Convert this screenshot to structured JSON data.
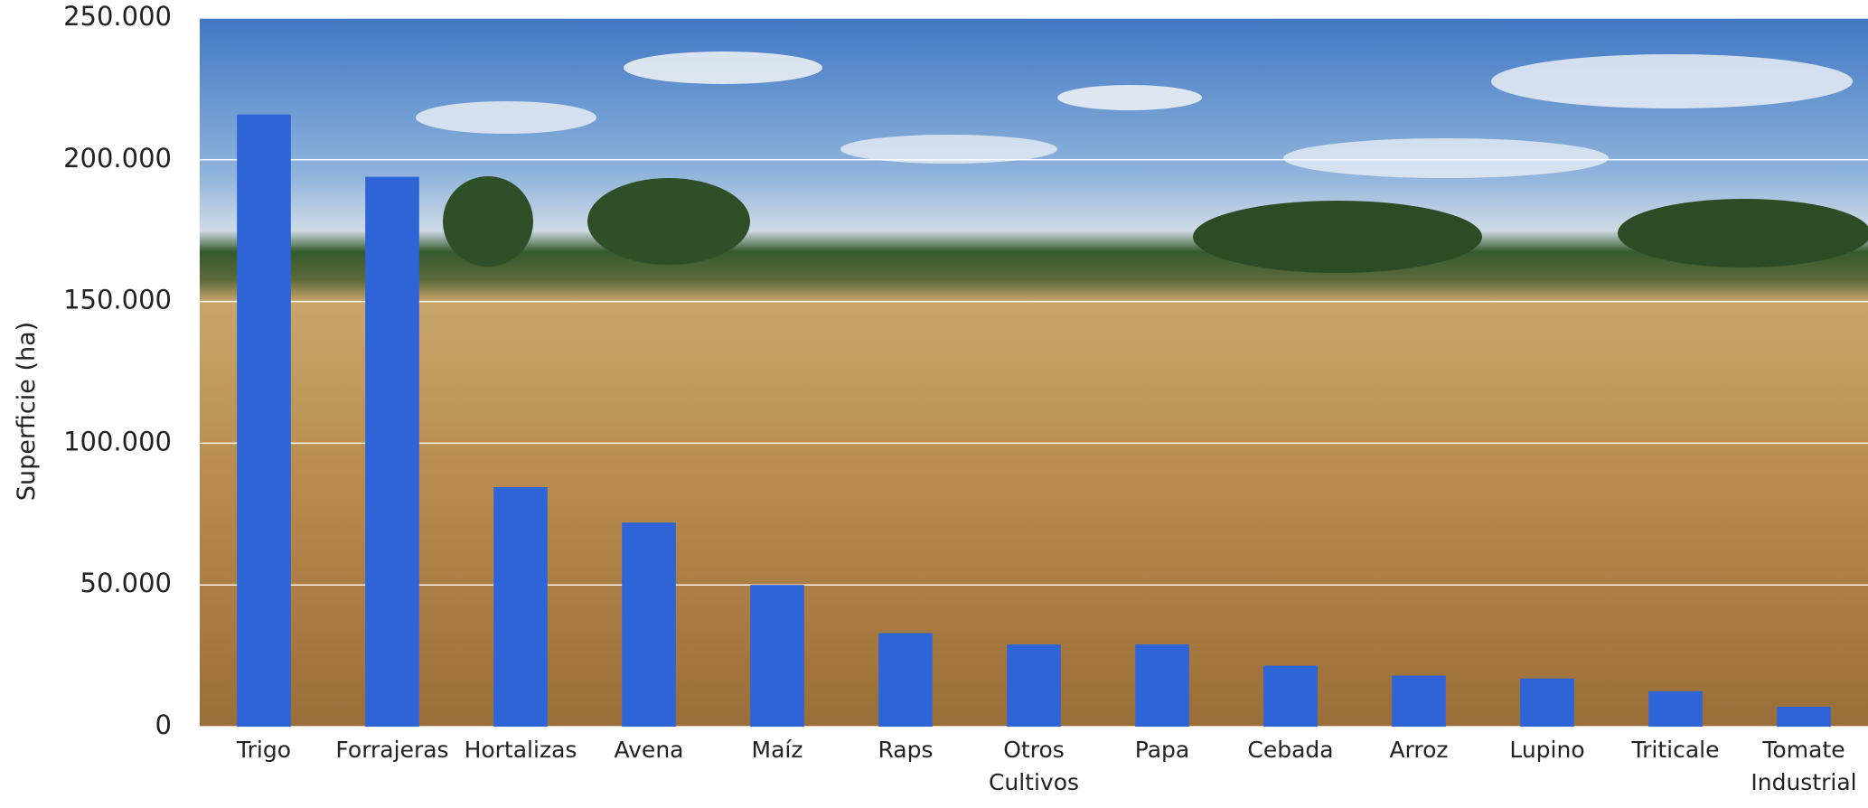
{
  "chart_data": {
    "type": "bar",
    "y_label": "Superficie (ha)",
    "categories": [
      "Trigo",
      "Forrajeras",
      "Hortalizas",
      "Avena",
      "Maíz",
      "Raps",
      "Otros Cultivos",
      "Papa",
      "Cebada",
      "Arroz",
      "Lupino",
      "Triticale",
      "Tomate Industrial"
    ],
    "values": [
      216000,
      194000,
      84500,
      72000,
      50000,
      33000,
      29000,
      29000,
      21500,
      18000,
      17000,
      12500,
      7000
    ],
    "color": "#2e64d6",
    "ylim": [
      0,
      250000
    ],
    "yticks": [
      0,
      {
        "value": 50000,
        "label": "50.000"
      },
      {
        "value": 100000,
        "label": "100.000"
      },
      {
        "value": 150000,
        "label": "150.000"
      },
      {
        "value": 200000,
        "label": "200.000"
      },
      {
        "value": 250000,
        "label": "250.000"
      }
    ],
    "grid": true
  }
}
